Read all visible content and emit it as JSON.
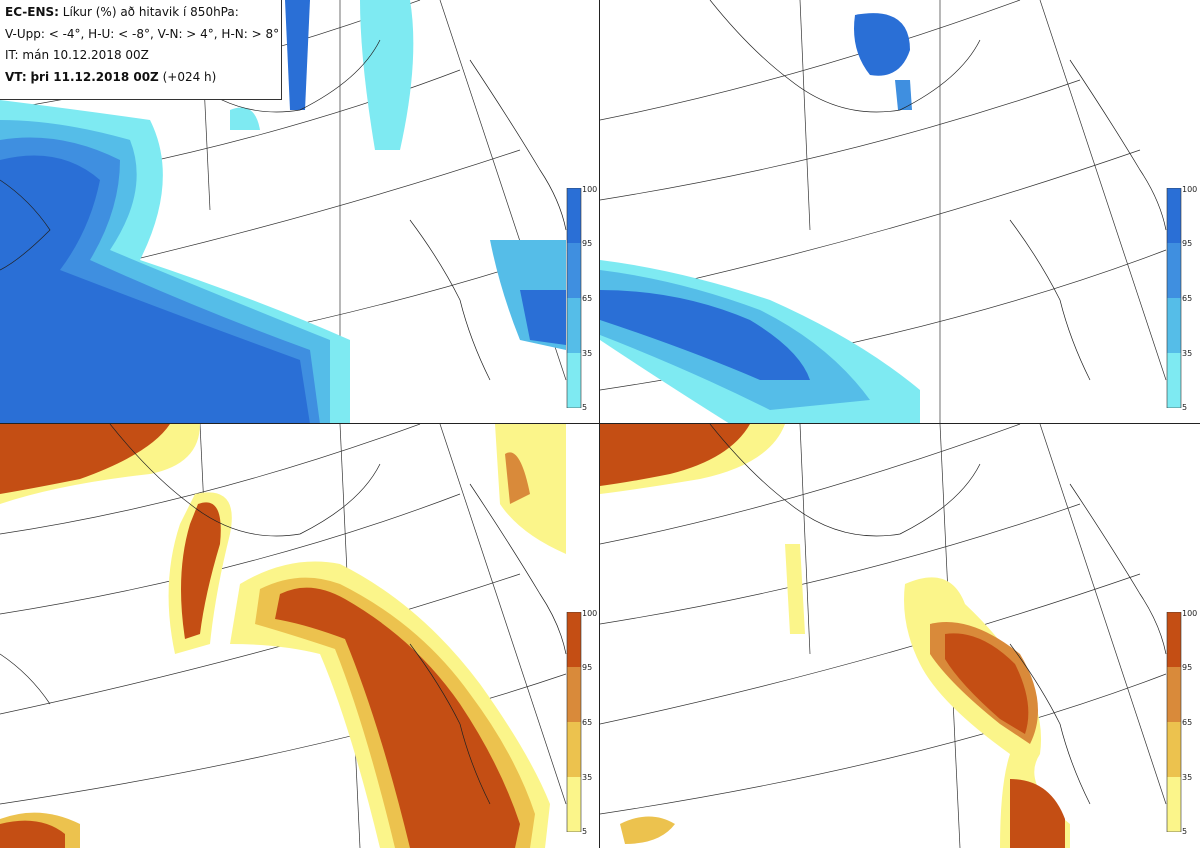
{
  "header": {
    "model": "EC-ENS:",
    "title_rest": "Líkur (%) að hitavik í 850hPa:",
    "legend_line": "V-Upp: < -4°, H-U: < -8°, V-N: > 4°, H-N: > 8°",
    "init_time": "IT: mán 10.12.2018 00Z",
    "valid_prefix": "VT:",
    "valid_time": "þri 11.12.2018 00Z",
    "lead_time": "(+024 h)"
  },
  "panels": [
    {
      "id": "V-Upp",
      "scheme": "cold"
    },
    {
      "id": "H-U",
      "scheme": "cold"
    },
    {
      "id": "V-N",
      "scheme": "warm"
    },
    {
      "id": "H-N",
      "scheme": "warm"
    }
  ],
  "colorbar": {
    "ticks": [
      "100",
      "95",
      "65",
      "35",
      "5"
    ],
    "cold_colors": [
      "#2a6fd6",
      "#3f8fe0",
      "#55bde8",
      "#7eeaf2"
    ],
    "warm_colors": [
      "#c44e14",
      "#d98a3a",
      "#ecc24e",
      "#fbf58a"
    ]
  }
}
